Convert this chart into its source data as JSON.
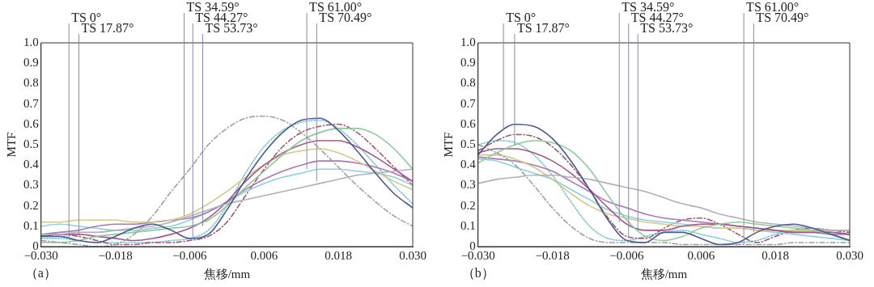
{
  "chart_data": [
    {
      "type": "line",
      "xlabel": "焦移/mm",
      "ylabel": "MTF",
      "x": [
        -0.03,
        -0.027,
        -0.024,
        -0.021,
        -0.018,
        -0.015,
        -0.012,
        -0.009,
        -0.006,
        -0.003,
        0,
        0.003,
        0.006,
        0.009,
        0.012,
        0.015,
        0.018,
        0.021,
        0.024,
        0.027,
        0.03
      ],
      "xlim": [
        -0.03,
        0.03
      ],
      "ylim": [
        0,
        1
      ],
      "xticks": [
        {
          "value": -0.03,
          "label": "−0.030"
        },
        {
          "value": -0.018,
          "label": "−0.018"
        },
        {
          "value": -0.006,
          "label": "−0.006"
        },
        {
          "value": 0.006,
          "label": "0.006"
        },
        {
          "value": 0.018,
          "label": "0.018"
        },
        {
          "value": 0.03,
          "label": "0.030"
        }
      ],
      "yticks": [
        0,
        0.1,
        0.2,
        0.3,
        0.4,
        0.5,
        0.6,
        0.7,
        0.8,
        0.9,
        {
          "value": 1,
          "label": "1.0"
        }
      ],
      "grid": false,
      "legend": false,
      "marker": "none",
      "series": [
        {
          "color": "#4a5a8c",
          "values": [
            0.05,
            0.05,
            0.03,
            0.02,
            0.05,
            0.09,
            0.11,
            0.08,
            0.04,
            0.06,
            0.18,
            0.33,
            0.46,
            0.56,
            0.62,
            0.63,
            0.57,
            0.47,
            0.36,
            0.26,
            0.19
          ]
        },
        {
          "color": "#a0a0a0",
          "line_style": "dashed",
          "values": [
            0.03,
            0.02,
            0.01,
            0,
            0.01,
            0.06,
            0.15,
            0.27,
            0.38,
            0.5,
            0.58,
            0.63,
            0.64,
            0.62,
            0.56,
            0.48,
            0.39,
            0.3,
            0.22,
            0.15,
            0.1
          ]
        },
        {
          "color": "#b0b0b8",
          "values": [
            0.06,
            0.06,
            0.07,
            0.07,
            0.08,
            0.09,
            0.1,
            0.12,
            0.15,
            0.18,
            0.21,
            0.23,
            0.25,
            0.27,
            0.29,
            0.31,
            0.33,
            0.35,
            0.36,
            0.37,
            0.38
          ]
        },
        {
          "color": "#8fc99a",
          "values": [
            0.02,
            0.02,
            0.03,
            0.05,
            0.06,
            0.07,
            0.08,
            0.09,
            0.1,
            0.13,
            0.2,
            0.29,
            0.37,
            0.45,
            0.52,
            0.56,
            0.58,
            0.58,
            0.55,
            0.48,
            0.38
          ]
        },
        {
          "color": "#a0588c",
          "values": [
            0.05,
            0.06,
            0.06,
            0.05,
            0.04,
            0.03,
            0.04,
            0.06,
            0.09,
            0.14,
            0.22,
            0.32,
            0.4,
            0.46,
            0.5,
            0.52,
            0.52,
            0.49,
            0.44,
            0.38,
            0.32
          ]
        },
        {
          "color": "#d4c88a",
          "values": [
            0.12,
            0.12,
            0.13,
            0.13,
            0.13,
            0.12,
            0.12,
            0.13,
            0.16,
            0.21,
            0.27,
            0.34,
            0.4,
            0.45,
            0.47,
            0.48,
            0.46,
            0.42,
            0.37,
            0.32,
            0.28
          ]
        },
        {
          "color": "#a878b8",
          "values": [
            0.06,
            0.07,
            0.08,
            0.1,
            0.11,
            0.11,
            0.12,
            0.13,
            0.14,
            0.17,
            0.22,
            0.28,
            0.33,
            0.37,
            0.4,
            0.42,
            0.42,
            0.41,
            0.39,
            0.36,
            0.32
          ]
        },
        {
          "color": "#8ed0dc",
          "values": [
            0.1,
            0.11,
            0.1,
            0.09,
            0.08,
            0.08,
            0.09,
            0.1,
            0.13,
            0.17,
            0.22,
            0.27,
            0.31,
            0.34,
            0.36,
            0.38,
            0.38,
            0.37,
            0.36,
            0.34,
            0.3
          ]
        },
        {
          "color": "#9c5a6c",
          "line_style": "dashed",
          "values": [
            0.05,
            0.06,
            0.05,
            0.03,
            0.01,
            0.01,
            0.02,
            0.02,
            0.03,
            0.05,
            0.12,
            0.25,
            0.38,
            0.49,
            0.56,
            0.59,
            0.6,
            0.56,
            0.48,
            0.39,
            0.3
          ]
        },
        {
          "color": "#7cc4d4",
          "line_style": "dotted",
          "values": [
            0.04,
            0.04,
            0.03,
            0.02,
            0.02,
            0.02,
            0.02,
            0.03,
            0.04,
            0.08,
            0.2,
            0.36,
            0.49,
            0.57,
            0.61,
            0.62,
            0.58,
            0.5,
            0.4,
            0.3,
            0.21
          ]
        }
      ],
      "annotations": [
        {
          "text": "TS 0°",
          "x": -0.0255,
          "y": 0.04
        },
        {
          "text": "TS 17.87°",
          "x": -0.0239,
          "y": 0.05
        },
        {
          "text": "TS 34.59°",
          "x": -0.0069,
          "y": 0.15
        },
        {
          "text": "TS 44.27°",
          "x": -0.0055,
          "y": 0.04
        },
        {
          "text": "TS 53.73°",
          "x": -0.0039,
          "y": 0.1
        },
        {
          "text": "TS 61.00°",
          "x": 0.0129,
          "y": 0.38
        },
        {
          "text": "TS 70.49°",
          "x": 0.0145,
          "y": 0.32
        },
        "（a）"
      ]
    },
    {
      "type": "line",
      "xlabel": "焦移/mm",
      "ylabel": "MTF",
      "x": [
        -0.03,
        -0.027,
        -0.024,
        -0.021,
        -0.018,
        -0.015,
        -0.012,
        -0.009,
        -0.006,
        -0.003,
        0,
        0.003,
        0.006,
        0.009,
        0.012,
        0.015,
        0.018,
        0.021,
        0.024,
        0.027,
        0.03
      ],
      "xlim": [
        -0.03,
        0.03
      ],
      "ylim": [
        0,
        1
      ],
      "xticks": [
        {
          "value": -0.03,
          "label": "−0.030"
        },
        {
          "value": -0.018,
          "label": "−0.018"
        },
        {
          "value": -0.006,
          "label": "−0.006"
        },
        {
          "value": 0.006,
          "label": "0.006"
        },
        {
          "value": 0.018,
          "label": "0.018"
        },
        {
          "value": 0.03,
          "label": "0.030"
        }
      ],
      "yticks": [
        0,
        0.1,
        0.2,
        0.3,
        0.4,
        0.5,
        0.6,
        0.7,
        0.8,
        0.9,
        {
          "value": 1,
          "label": "1.0"
        }
      ],
      "grid": false,
      "legend": false,
      "marker": "none",
      "series": [
        {
          "color": "#4a5a8c",
          "values": [
            0.45,
            0.55,
            0.6,
            0.59,
            0.53,
            0.42,
            0.28,
            0.13,
            0.03,
            0.02,
            0.07,
            0.07,
            0.04,
            0.01,
            0.02,
            0.07,
            0.1,
            0.11,
            0.09,
            0.06,
            0.03
          ]
        },
        {
          "color": "#a0a0a0",
          "line_style": "dashed",
          "values": [
            0.5,
            0.46,
            0.4,
            0.3,
            0.19,
            0.1,
            0.04,
            0.02,
            0.02,
            0.02,
            0.02,
            0.01,
            0.01,
            0.01,
            0.01,
            0.01,
            0.01,
            0.02,
            0.02,
            0.02,
            0.02
          ]
        },
        {
          "color": "#b0b0b8",
          "values": [
            0.31,
            0.33,
            0.34,
            0.35,
            0.35,
            0.34,
            0.33,
            0.31,
            0.29,
            0.27,
            0.24,
            0.21,
            0.19,
            0.16,
            0.14,
            0.12,
            0.11,
            0.1,
            0.09,
            0.08,
            0.08
          ]
        },
        {
          "color": "#8fc99a",
          "values": [
            0.41,
            0.46,
            0.5,
            0.52,
            0.51,
            0.47,
            0.38,
            0.25,
            0.13,
            0.05,
            0.03,
            0.05,
            0.09,
            0.11,
            0.12,
            0.11,
            0.1,
            0.09,
            0.08,
            0.06,
            0.03
          ]
        },
        {
          "color": "#a0588c",
          "values": [
            0.46,
            0.48,
            0.48,
            0.46,
            0.42,
            0.36,
            0.28,
            0.19,
            0.11,
            0.08,
            0.08,
            0.1,
            0.11,
            0.11,
            0.1,
            0.09,
            0.08,
            0.07,
            0.07,
            0.07,
            0.06
          ]
        },
        {
          "color": "#d4c88a",
          "values": [
            0.45,
            0.45,
            0.43,
            0.39,
            0.33,
            0.26,
            0.2,
            0.16,
            0.14,
            0.12,
            0.11,
            0.1,
            0.1,
            0.09,
            0.09,
            0.08,
            0.08,
            0.08,
            0.08,
            0.08,
            0.08
          ]
        },
        {
          "color": "#a878b8",
          "values": [
            0.44,
            0.43,
            0.42,
            0.4,
            0.37,
            0.32,
            0.27,
            0.22,
            0.19,
            0.16,
            0.14,
            0.13,
            0.12,
            0.11,
            0.1,
            0.09,
            0.08,
            0.07,
            0.07,
            0.06,
            0.06
          ]
        },
        {
          "color": "#8ed0dc",
          "values": [
            0.43,
            0.42,
            0.39,
            0.36,
            0.33,
            0.28,
            0.23,
            0.18,
            0.15,
            0.13,
            0.12,
            0.11,
            0.1,
            0.09,
            0.09,
            0.08,
            0.07,
            0.06,
            0.05,
            0.04,
            0.03
          ]
        },
        {
          "color": "#9c5a6c",
          "line_style": "dashed",
          "values": [
            0.47,
            0.52,
            0.55,
            0.54,
            0.49,
            0.4,
            0.28,
            0.14,
            0.05,
            0.04,
            0.09,
            0.13,
            0.14,
            0.11,
            0.06,
            0.02,
            0.05,
            0.08,
            0.09,
            0.08,
            0.07
          ]
        },
        {
          "color": "#7cc4d4",
          "line_style": "dotted",
          "values": [
            0.5,
            0.52,
            0.51,
            0.45,
            0.35,
            0.22,
            0.1,
            0.04,
            0.03,
            0.05,
            0.07,
            0.08,
            0.06,
            0.04,
            0.02,
            0.03,
            0.06,
            0.08,
            0.08,
            0.07,
            0.06
          ]
        }
      ],
      "annotations": [
        {
          "text": "TS 0°",
          "x": -0.0259,
          "y": 0.57
        },
        {
          "text": "TS 17.87°",
          "x": -0.0241,
          "y": 0.5
        },
        {
          "text": "TS 34.59°",
          "x": -0.0072,
          "y": 0.12
        },
        {
          "text": "TS 44.27°",
          "x": -0.0057,
          "y": 0.04
        },
        {
          "text": "TS 53.73°",
          "x": -0.0042,
          "y": 0.08
        },
        {
          "text": "TS 61.00°",
          "x": 0.0129,
          "y": 0.01
        },
        {
          "text": "TS 70.49°",
          "x": 0.0145,
          "y": 0.07
        },
        "（b）"
      ]
    }
  ]
}
